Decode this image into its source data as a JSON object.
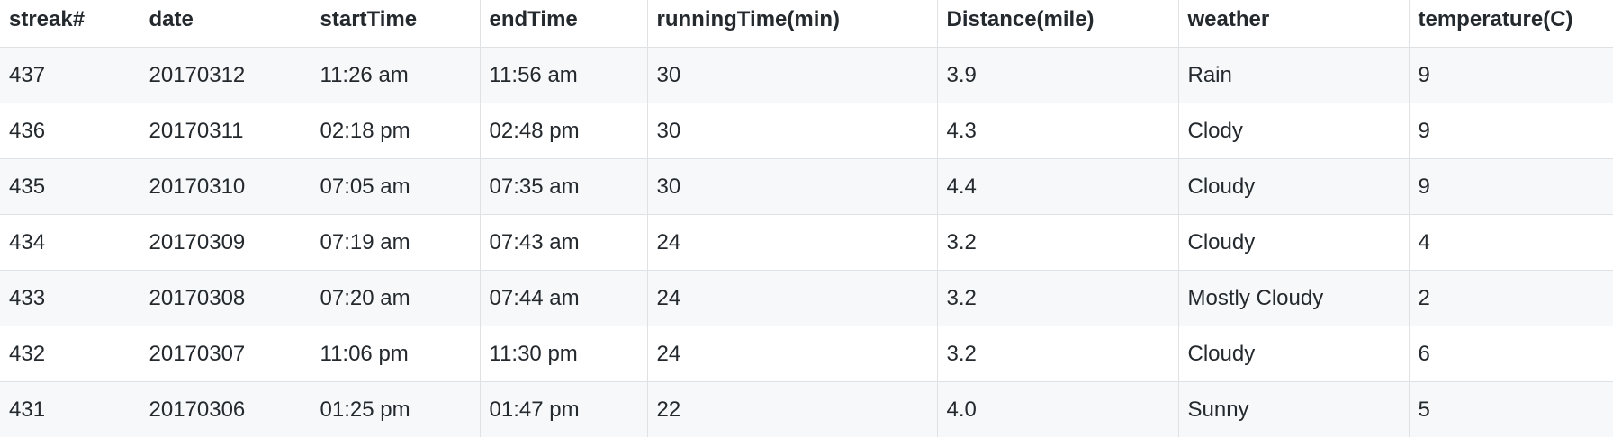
{
  "table": {
    "headers": [
      "streak#",
      "date",
      "startTime",
      "endTime",
      "runningTime(min)",
      "Distance(mile)",
      "weather",
      "temperature(C)"
    ],
    "rows": [
      [
        "437",
        "20170312",
        "11:26 am",
        "11:56 am",
        "30",
        "3.9",
        "Rain",
        "9"
      ],
      [
        "436",
        "20170311",
        "02:18 pm",
        "02:48 pm",
        "30",
        "4.3",
        "Clody",
        "9"
      ],
      [
        "435",
        "20170310",
        "07:05 am",
        "07:35 am",
        "30",
        "4.4",
        "Cloudy",
        "9"
      ],
      [
        "434",
        "20170309",
        "07:19 am",
        "07:43 am",
        "24",
        "3.2",
        "Cloudy",
        "4"
      ],
      [
        "433",
        "20170308",
        "07:20 am",
        "07:44 am",
        "24",
        "3.2",
        "Mostly Cloudy",
        "2"
      ],
      [
        "432",
        "20170307",
        "11:06 pm",
        "11:30 pm",
        "24",
        "3.2",
        "Cloudy",
        "6"
      ],
      [
        "431",
        "20170306",
        "01:25 pm",
        "01:47 pm",
        "22",
        "4.0",
        "Sunny",
        "5"
      ]
    ]
  }
}
